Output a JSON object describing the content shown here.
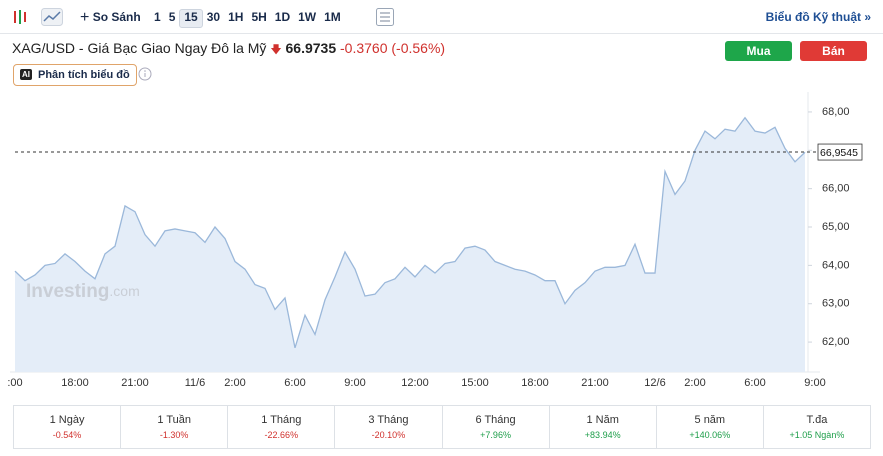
{
  "toolbar": {
    "compare": "So Sánh",
    "intervals": [
      "1",
      "5",
      "15",
      "30",
      "1H",
      "5H",
      "1D",
      "1W",
      "1M"
    ],
    "technical": "Biểu đồ Kỹ thuật »"
  },
  "header": {
    "title": "XAG/USD - Giá Bạc Giao Ngay Đô la Mỹ",
    "price": "66.9735",
    "change": "-0.3760",
    "change_pct": "(-0.56%)",
    "buy": "Mua",
    "sell": "Bán",
    "analysis_badge": "AI",
    "analysis": "Phân tích biểu đồ"
  },
  "watermark": {
    "brand": "Investing",
    "suffix": ".com"
  },
  "chart_data": {
    "type": "area",
    "categories": [
      ":00",
      null,
      null,
      null,
      null,
      null,
      "18:00",
      null,
      null,
      null,
      null,
      null,
      "21:00",
      null,
      null,
      null,
      null,
      null,
      "11/6",
      null,
      null,
      null,
      "2:00",
      null,
      null,
      null,
      null,
      null,
      "6:00",
      null,
      null,
      null,
      null,
      null,
      "9:00",
      null,
      null,
      null,
      null,
      null,
      "12:00",
      null,
      null,
      null,
      null,
      null,
      "15:00",
      null,
      null,
      null,
      null,
      null,
      "18:00",
      null,
      null,
      null,
      null,
      null,
      "21:00",
      null,
      null,
      null,
      null,
      null,
      "12/6",
      null,
      null,
      null,
      "2:00",
      null,
      null,
      null,
      null,
      null,
      "6:00",
      null,
      null,
      null,
      null,
      null,
      "9:00"
    ],
    "values": [
      63.85,
      63.6,
      63.75,
      64.0,
      64.05,
      64.3,
      64.1,
      63.85,
      63.65,
      64.3,
      64.5,
      65.55,
      65.4,
      64.8,
      64.5,
      64.9,
      64.95,
      64.9,
      64.85,
      64.6,
      65.0,
      64.7,
      64.1,
      63.9,
      63.5,
      63.4,
      62.85,
      63.15,
      61.85,
      62.7,
      62.2,
      63.1,
      63.7,
      64.35,
      63.9,
      63.2,
      63.25,
      63.55,
      63.65,
      63.95,
      63.7,
      64.0,
      63.8,
      64.05,
      64.1,
      64.45,
      64.5,
      64.4,
      64.1,
      64.0,
      63.9,
      63.85,
      63.75,
      63.6,
      63.6,
      63.0,
      63.35,
      63.55,
      63.85,
      63.95,
      63.95,
      64.0,
      64.55,
      63.8,
      63.8,
      66.45,
      65.85,
      66.2,
      67.0,
      67.5,
      67.3,
      67.55,
      67.5,
      67.85,
      67.5,
      67.45,
      67.6,
      67.05,
      66.7,
      66.95,
      null
    ],
    "color": "#9bb8da",
    "ylim": [
      61.22,
      68.52
    ],
    "yticks": [
      {
        "value": 62,
        "label": "62,00"
      },
      {
        "value": 63,
        "label": "63,00"
      },
      {
        "value": 64,
        "label": "64,00"
      },
      {
        "value": 65,
        "label": "65,00"
      },
      {
        "value": 66,
        "label": "66,00"
      },
      {
        "value": 67,
        "label": "67,00"
      },
      {
        "value": 68,
        "label": "68,00"
      }
    ],
    "current_price": {
      "value": 66.9545,
      "label": "66,9545"
    },
    "grid": false
  },
  "performance": [
    {
      "period": "1 Ngày",
      "change": "-0.54%"
    },
    {
      "period": "1 Tuần",
      "change": "-1.30%"
    },
    {
      "period": "1 Tháng",
      "change": "-22.66%"
    },
    {
      "period": "3 Tháng",
      "change": "-20.10%"
    },
    {
      "period": "6 Tháng",
      "change": "+7.96%"
    },
    {
      "period": "1 Năm",
      "change": "+83.94%"
    },
    {
      "period": "5 năm",
      "change": "+140.06%"
    },
    {
      "period": "T.đa",
      "change": "+1.05 Ngàn%"
    }
  ]
}
